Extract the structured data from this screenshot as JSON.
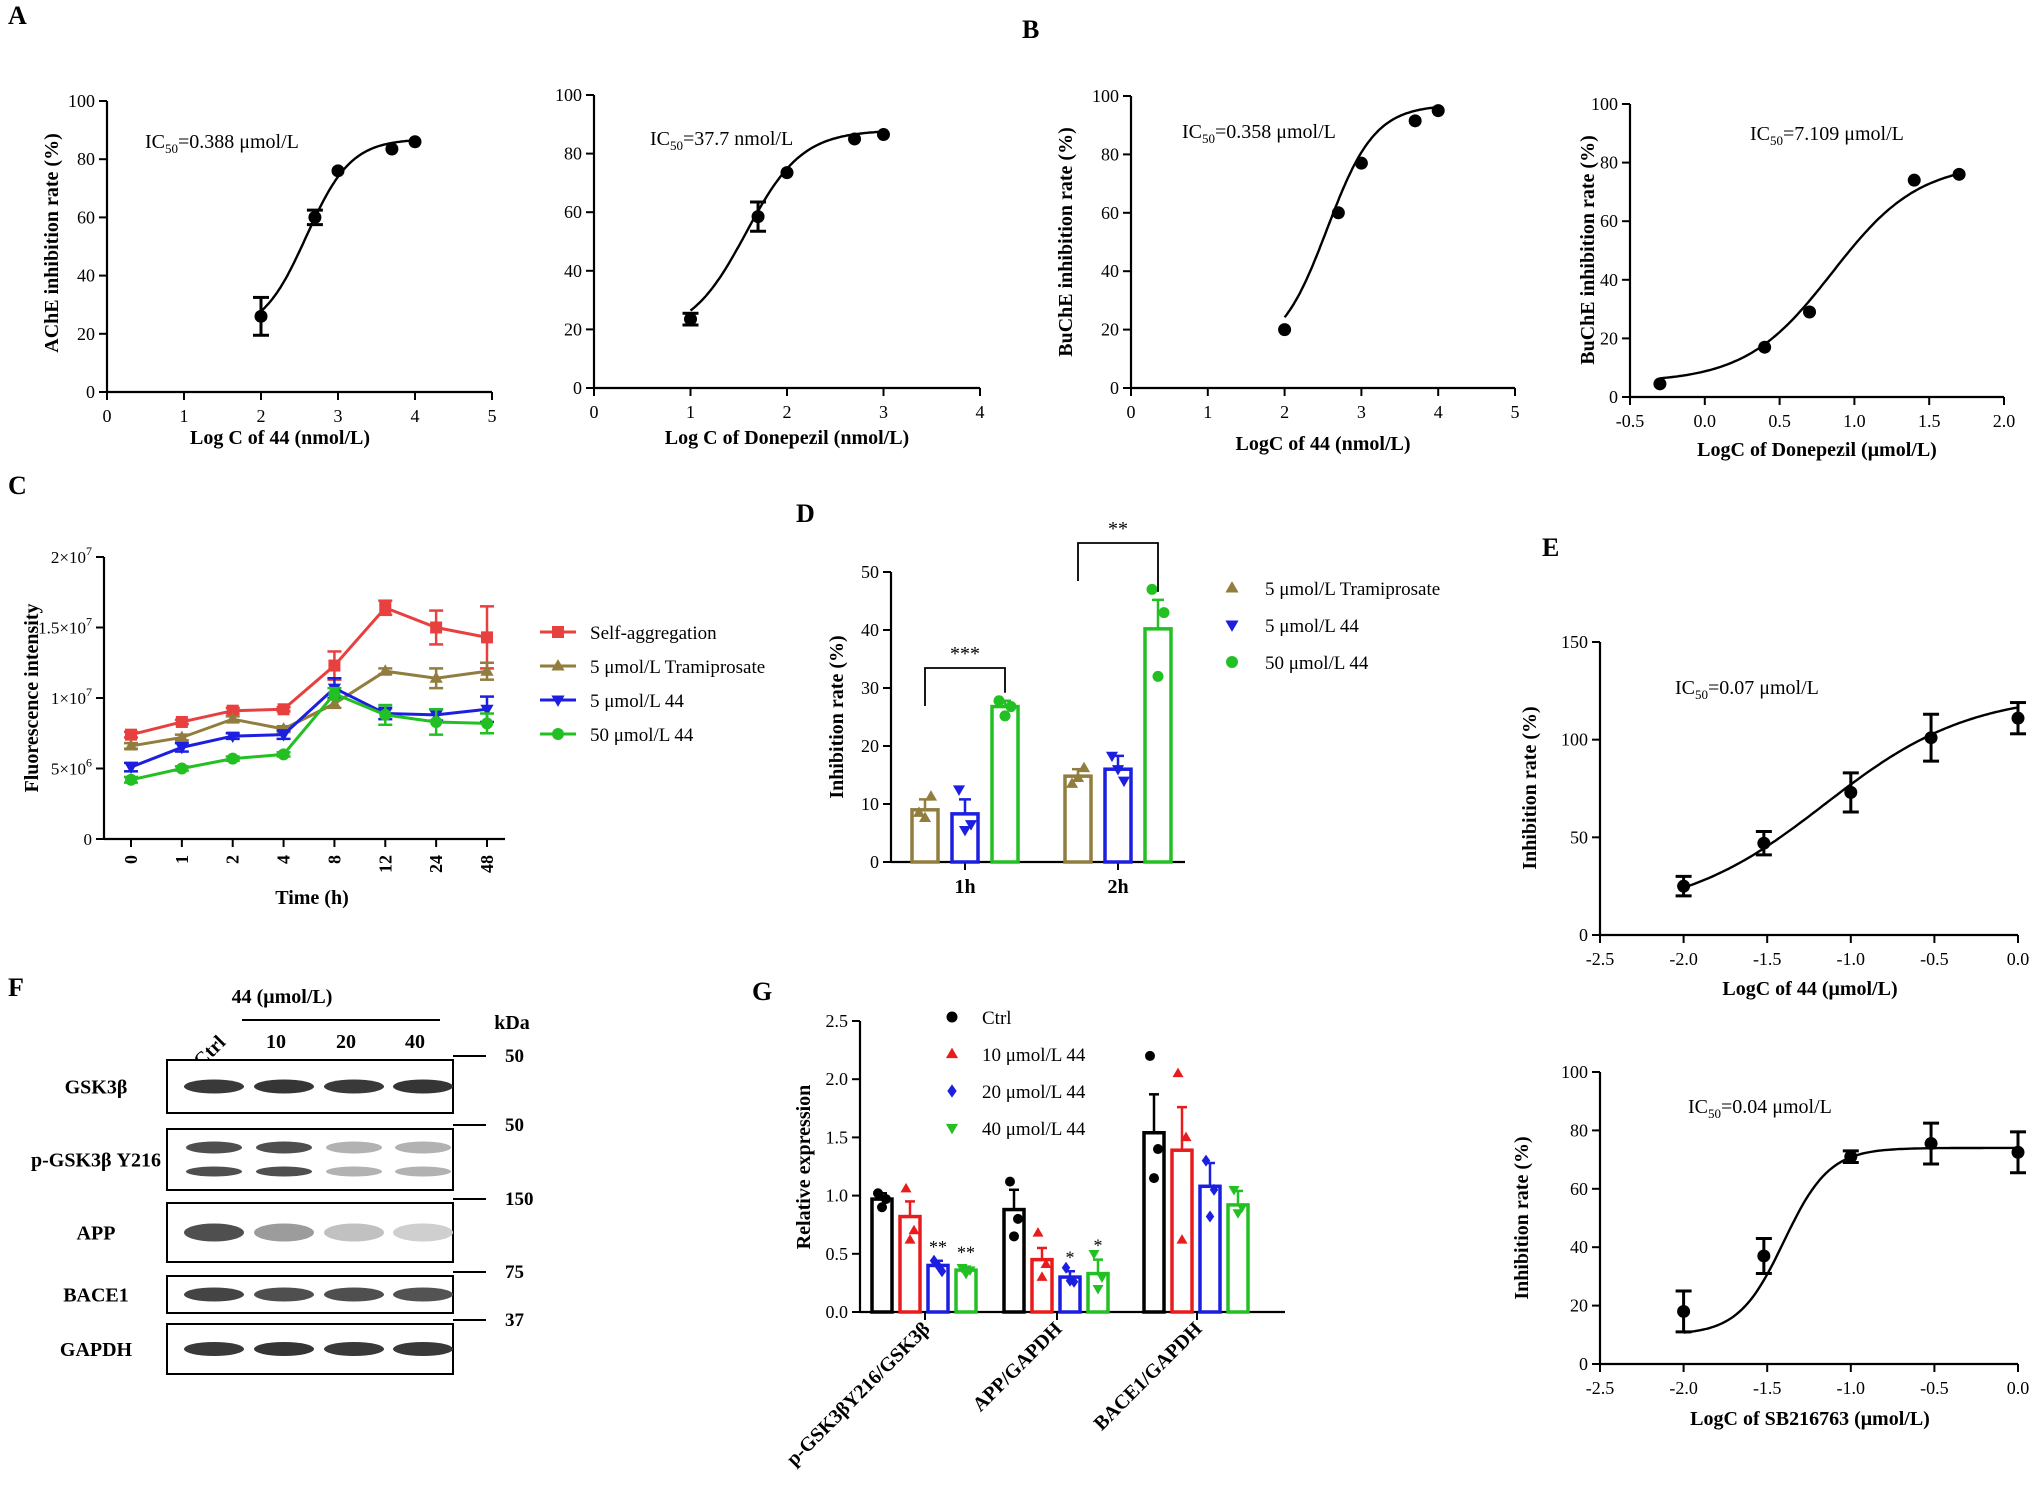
{
  "panel_letters": {
    "A": "A",
    "B": "B",
    "C": "C",
    "D": "D",
    "E": "E",
    "F": "F",
    "G": "G"
  },
  "chart_data": [
    {
      "id": "A1",
      "type": "scatter",
      "fit": "sigmoid",
      "xlabel": "Log C of 44 (nmol/L)",
      "ylabel": "AChE inhibition rate (%)",
      "xlim": [
        0,
        5
      ],
      "ylim": [
        0,
        100
      ],
      "xticks": [
        "0",
        "1",
        "2",
        "3",
        "4",
        "5"
      ],
      "yticks": [
        "0",
        "20",
        "40",
        "60",
        "80",
        "100"
      ],
      "x": [
        2,
        2.7,
        3,
        3.7,
        4
      ],
      "y": [
        26,
        60,
        76,
        83.5,
        86
      ],
      "err": [
        6.5,
        2.5,
        0,
        0,
        0
      ],
      "fit_params": {
        "bottom": 20,
        "top": 87,
        "logic50": 2.589,
        "hill": 1.5
      },
      "annotation": {
        "prefix": "IC",
        "sub": "50",
        "suffix": "=0.388 μmol/L"
      }
    },
    {
      "id": "A2",
      "type": "scatter",
      "fit": "sigmoid",
      "xlabel": "Log C of Donepezil (nmol/L)",
      "ylabel": "",
      "xlim": [
        0,
        4
      ],
      "ylim": [
        0,
        100
      ],
      "xticks": [
        "0",
        "1",
        "2",
        "3",
        "4"
      ],
      "yticks": [
        "0",
        "20",
        "40",
        "60",
        "80",
        "100"
      ],
      "x": [
        1,
        1.7,
        2,
        2.7,
        3
      ],
      "y": [
        23.5,
        58.5,
        73.5,
        85,
        86.5
      ],
      "err": [
        2,
        5,
        0,
        0,
        0
      ],
      "fit_params": {
        "bottom": 18,
        "top": 88,
        "logic50": 1.576,
        "hill": 1.5
      },
      "annotation": {
        "prefix": "IC",
        "sub": "50",
        "suffix": "=37.7 nmol/L"
      }
    },
    {
      "id": "B1",
      "type": "scatter",
      "fit": "sigmoid",
      "xlabel": "LogC of 44 (nmol/L)",
      "ylabel": "BuChE inhibition rate (%)",
      "xlim": [
        0,
        5
      ],
      "ylim": [
        0,
        100
      ],
      "xticks": [
        "0",
        "1",
        "2",
        "3",
        "4",
        "5"
      ],
      "yticks": [
        "0",
        "20",
        "40",
        "60",
        "80",
        "100"
      ],
      "x": [
        2,
        2.7,
        3,
        3.7,
        4
      ],
      "y": [
        20,
        60,
        77,
        91.5,
        95
      ],
      "err": [
        0,
        0,
        0,
        0,
        0
      ],
      "fit_params": {
        "bottom": 12,
        "top": 97,
        "logic50": 2.554,
        "hill": 1.4
      },
      "annotation": {
        "prefix": "IC",
        "sub": "50",
        "suffix": "=0.358 μmol/L"
      }
    },
    {
      "id": "B2",
      "type": "scatter",
      "fit": "sigmoid",
      "xlabel": "LogC of Donepezil (μmol/L)",
      "ylabel": "BuChE inhibition rate (%)",
      "xlim": [
        -0.5,
        2.0
      ],
      "ylim": [
        0,
        100
      ],
      "xticks": [
        "-0.5",
        "0.0",
        "0.5",
        "1.0",
        "1.5",
        "2.0"
      ],
      "yticks": [
        "0",
        "20",
        "40",
        "60",
        "80",
        "100"
      ],
      "x": [
        -0.3,
        0.4,
        0.7,
        1.4,
        1.7
      ],
      "y": [
        4.5,
        17,
        29,
        74,
        76
      ],
      "err": [
        0,
        0,
        0,
        0,
        0
      ],
      "fit_params": {
        "bottom": 5,
        "top": 80,
        "logic50": 0.852,
        "hill": 1.5
      },
      "annotation": {
        "prefix": "IC",
        "sub": "50",
        "suffix": "=7.109 μmol/L"
      }
    },
    {
      "id": "C",
      "type": "line",
      "xlabel": "Time (h)",
      "ylabel": "Fluorescence intensity",
      "categories": [
        "0",
        "1",
        "2",
        "4",
        "8",
        "12",
        "24",
        "48"
      ],
      "ylim": [
        0,
        20000000
      ],
      "ytick_labels": [
        {
          "v": 0,
          "base": "0",
          "exp": ""
        },
        {
          "v": 5000000,
          "base": "5×10",
          "exp": "6"
        },
        {
          "v": 10000000,
          "base": "1×10",
          "exp": "7"
        },
        {
          "v": 15000000,
          "base": "1.5×10",
          "exp": "7"
        },
        {
          "v": 20000000,
          "base": "2×10",
          "exp": "7"
        }
      ],
      "series": [
        {
          "name": "Self-aggregation",
          "color": "#e8403f",
          "marker": "square",
          "values": [
            7400000,
            8300000,
            9100000,
            9200000,
            12300000,
            16400000,
            15000000,
            14300000
          ],
          "err": [
            200000,
            150000,
            200000,
            150000,
            1000000,
            500000,
            1200000,
            2200000
          ]
        },
        {
          "name": "5 μmol/L Tramiprosate",
          "color": "#917d3e",
          "marker": "triangle-up",
          "values": [
            6600000,
            7200000,
            8500000,
            7800000,
            9600000,
            11900000,
            11400000,
            11900000
          ],
          "err": [
            200000,
            200000,
            200000,
            200000,
            300000,
            200000,
            700000,
            600000
          ]
        },
        {
          "name": "5 μmol/L 44",
          "color": "#1d1fe0",
          "marker": "triangle-down",
          "values": [
            5100000,
            6500000,
            7300000,
            7400000,
            10700000,
            8900000,
            8800000,
            9200000
          ],
          "err": [
            300000,
            300000,
            200000,
            300000,
            700000,
            400000,
            400000,
            900000
          ]
        },
        {
          "name": "50 μmol/L 44",
          "color": "#23c023",
          "marker": "circle",
          "values": [
            4200000,
            5000000,
            5700000,
            6000000,
            10300000,
            8800000,
            8300000,
            8200000
          ],
          "err": [
            200000,
            150000,
            150000,
            150000,
            400000,
            700000,
            900000,
            700000
          ]
        }
      ]
    },
    {
      "id": "D",
      "type": "bar",
      "xlabel": "",
      "ylabel": "Inhibition rate (%)",
      "categories": [
        "1h",
        "2h"
      ],
      "ylim": [
        0,
        50
      ],
      "yticks": [
        "0",
        "10",
        "20",
        "30",
        "40",
        "50"
      ],
      "series": [
        {
          "name": "5 μmol/L Tramiprosate",
          "color": "#917d3e",
          "marker": "triangle-up",
          "values": [
            9,
            14.8
          ],
          "err": [
            1.8,
            1.2
          ],
          "points": [
            [
              8.5,
              11.3,
              7.6
            ],
            [
              13.5,
              16.2,
              14.5
            ]
          ]
        },
        {
          "name": "5 μmol/L 44",
          "color": "#1d1fe0",
          "marker": "triangle-down",
          "values": [
            8.3,
            16
          ],
          "err": [
            2.5,
            2.3
          ],
          "points": [
            [
              12.5,
              6.5,
              5.5
            ],
            [
              18.3,
              14,
              16
            ]
          ]
        },
        {
          "name": "50 μmol/L 44",
          "color": "#23c023",
          "marker": "circle",
          "values": [
            26.8,
            40.2
          ],
          "err": [
            1,
            5
          ],
          "points": [
            [
              27.8,
              26.8,
              25.2
            ],
            [
              47,
              43,
              32
            ]
          ]
        }
      ],
      "significance": [
        {
          "label": "***"
        },
        {
          "label": "**"
        }
      ]
    },
    {
      "id": "E1",
      "type": "scatter",
      "fit": "sigmoid",
      "xlabel": "LogC of 44 (μmol/L)",
      "ylabel": "Inhibition rate (%)",
      "xlim": [
        -2.5,
        0.0
      ],
      "ylim": [
        0,
        150
      ],
      "xticks": [
        "-2.5",
        "-2.0",
        "-1.5",
        "-1.0",
        "-0.5",
        "0.0"
      ],
      "yticks": [
        "0",
        "50",
        "100",
        "150"
      ],
      "x": [
        -2,
        -1.52,
        -1,
        -0.52,
        0
      ],
      "y": [
        25,
        47,
        73,
        101,
        111
      ],
      "err": [
        5,
        6,
        10,
        12,
        8
      ],
      "fit_params": {
        "bottom": 10,
        "top": 124,
        "logic50": -1.155,
        "hill": 1.0
      },
      "annotation": {
        "prefix": "IC",
        "sub": "50",
        "suffix": "=0.07 μmol/L"
      }
    },
    {
      "id": "E2",
      "type": "scatter",
      "fit": "sigmoid",
      "xlabel": "LogC of SB216763 (μmol/L)",
      "ylabel": "Inhibition rate (%)",
      "xlim": [
        -2.5,
        0.0
      ],
      "ylim": [
        0,
        100
      ],
      "xticks": [
        "-2.5",
        "-2.0",
        "-1.5",
        "-1.0",
        "-0.5",
        "0.0"
      ],
      "yticks": [
        "0",
        "20",
        "40",
        "60",
        "80",
        "100"
      ],
      "x": [
        -2,
        -1.52,
        -1,
        -0.52,
        0
      ],
      "y": [
        18,
        37,
        71,
        75.5,
        72.5
      ],
      "err": [
        7,
        6,
        2,
        7,
        7
      ],
      "fit_params": {
        "bottom": 10,
        "top": 74,
        "logic50": -1.4,
        "hill": 3.2
      },
      "annotation": {
        "prefix": "IC",
        "sub": "50",
        "suffix": "=0.04 μmol/L"
      }
    },
    {
      "id": "G",
      "type": "bar",
      "xlabel": "",
      "ylabel": "Relative expression",
      "categories": [
        "p-GSK3βY216/GSK3β",
        "APP/GAPDH",
        "BACE1/GAPDH"
      ],
      "ylim": [
        0,
        2.5
      ],
      "yticks": [
        "0.0",
        "0.5",
        "1.0",
        "1.5",
        "2.0",
        "2.5"
      ],
      "series": [
        {
          "name": "Ctrl",
          "color": "#000000",
          "marker": "circle",
          "values": [
            0.97,
            0.88,
            1.54
          ],
          "err": [
            0.05,
            0.17,
            0.33
          ],
          "points": [
            [
              1.02,
              0.97,
              0.9
            ],
            [
              1.12,
              0.8,
              0.65
            ],
            [
              2.2,
              1.4,
              1.15
            ]
          ],
          "stars": [
            "",
            "",
            ""
          ]
        },
        {
          "name": "10 μmol/L 44",
          "color": "#e81c1c",
          "marker": "triangle-up",
          "values": [
            0.82,
            0.45,
            1.39
          ],
          "err": [
            0.13,
            0.1,
            0.37
          ],
          "points": [
            [
              1.06,
              0.7,
              0.62
            ],
            [
              0.68,
              0.41,
              0.3
            ],
            [
              2.05,
              1.5,
              0.62
            ]
          ],
          "stars": [
            "",
            "",
            ""
          ]
        },
        {
          "name": "20 μmol/L 44",
          "color": "#1d1fe0",
          "marker": "diamond",
          "values": [
            0.4,
            0.3,
            1.08
          ],
          "err": [
            0.04,
            0.05,
            0.2
          ],
          "points": [
            [
              0.44,
              0.35,
              0.4
            ],
            [
              0.38,
              0.26,
              0.27
            ],
            [
              1.3,
              1.05,
              0.82
            ]
          ],
          "stars": [
            "**",
            "*",
            ""
          ]
        },
        {
          "name": "40 μmol/L 44",
          "color": "#23c023",
          "marker": "triangle-down",
          "values": [
            0.36,
            0.33,
            0.92
          ],
          "err": [
            0.03,
            0.12,
            0.12
          ],
          "points": [
            [
              0.38,
              0.36,
              0.33
            ],
            [
              0.5,
              0.3,
              0.2
            ],
            [
              1.05,
              0.9,
              0.85
            ]
          ],
          "stars": [
            "**",
            "*",
            ""
          ]
        }
      ]
    }
  ],
  "western_blot": {
    "header": "44 (μmol/L)",
    "lanes": [
      "Ctrl",
      "10",
      "20",
      "40"
    ],
    "kda_label": "kDa",
    "rows": [
      {
        "name": "GSK3β",
        "kda": "50",
        "intensity": [
          0.9,
          0.92,
          0.9,
          0.92
        ]
      },
      {
        "name": "p-GSK3β Y216",
        "kda": "50",
        "intensity": [
          0.8,
          0.8,
          0.35,
          0.35
        ]
      },
      {
        "name": "APP",
        "kda": "150",
        "intensity": [
          0.8,
          0.45,
          0.28,
          0.22
        ]
      },
      {
        "name": "BACE1",
        "kda": "75",
        "intensity": [
          0.85,
          0.8,
          0.8,
          0.78
        ]
      },
      {
        "name": "GAPDH",
        "kda": "37",
        "intensity": [
          0.9,
          0.92,
          0.9,
          0.9
        ]
      }
    ]
  }
}
